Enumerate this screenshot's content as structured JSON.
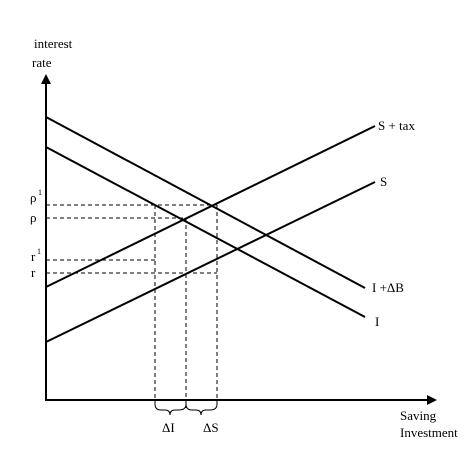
{
  "axes": {
    "y_label": [
      "interest",
      "rate"
    ],
    "x_label": [
      "Saving",
      "Investment"
    ]
  },
  "levels": [
    {
      "label": "ρ",
      "sup": "1"
    },
    {
      "label": "ρ"
    },
    {
      "label": "r",
      "sup": "1"
    },
    {
      "label": "r"
    }
  ],
  "curves": [
    "S + tax",
    "S",
    "I +ΔB",
    "I"
  ],
  "gaps": [
    "ΔI",
    "ΔS"
  ]
}
